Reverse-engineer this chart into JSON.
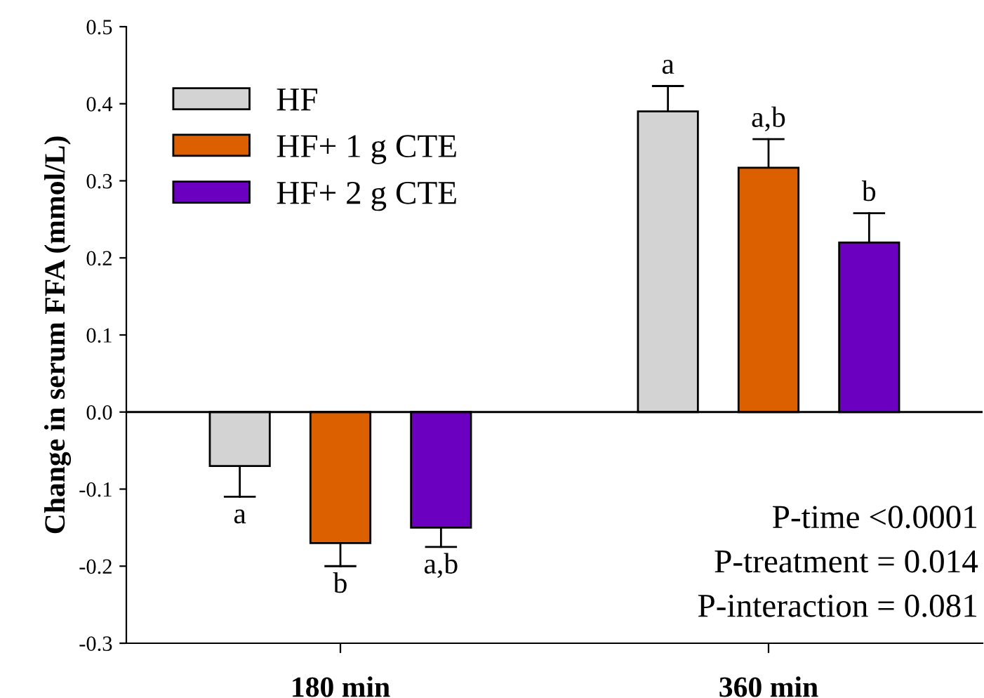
{
  "chart_data": {
    "type": "bar",
    "ylabel": "Change in serum FFA (mmol/L)",
    "categories": [
      "180 min",
      "360 min"
    ],
    "series": [
      {
        "name": "HF",
        "color": "#d3d3d3",
        "values": [
          -0.07,
          0.39
        ],
        "errors": [
          0.04,
          0.033
        ],
        "value_labels": [
          "a",
          "a"
        ]
      },
      {
        "name": "HF+ 1 g CTE",
        "color": "#dc6000",
        "values": [
          -0.17,
          0.317
        ],
        "errors": [
          0.03,
          0.037
        ],
        "value_labels": [
          "b",
          "a,b"
        ]
      },
      {
        "name": "HF+ 2 g CTE",
        "color": "#6c00c0",
        "values": [
          -0.15,
          0.22
        ],
        "errors": [
          0.025,
          0.038
        ],
        "value_labels": [
          "a,b",
          "b"
        ]
      }
    ],
    "ylim": [
      -0.3,
      0.5
    ],
    "yticks": [
      {
        "value": -0.3,
        "label": "-0.3"
      },
      {
        "value": -0.2,
        "label": "-0.2"
      },
      {
        "value": -0.1,
        "label": "-0.1"
      },
      {
        "value": 0.0,
        "label": "0.0"
      },
      {
        "value": 0.1,
        "label": "0.1"
      },
      {
        "value": 0.2,
        "label": "0.2"
      },
      {
        "value": 0.3,
        "label": "0.3"
      },
      {
        "value": 0.4,
        "label": "0.4"
      },
      {
        "value": 0.5,
        "label": "0.5"
      }
    ],
    "ref_lines": [
      {
        "axis": "y",
        "value": 0,
        "label": null,
        "color": "#000000"
      }
    ],
    "annotations": [
      "P-time <0.0001",
      "P-treatment = 0.014",
      "P-interaction = 0.081"
    ],
    "legend": "top left",
    "grid": false
  }
}
